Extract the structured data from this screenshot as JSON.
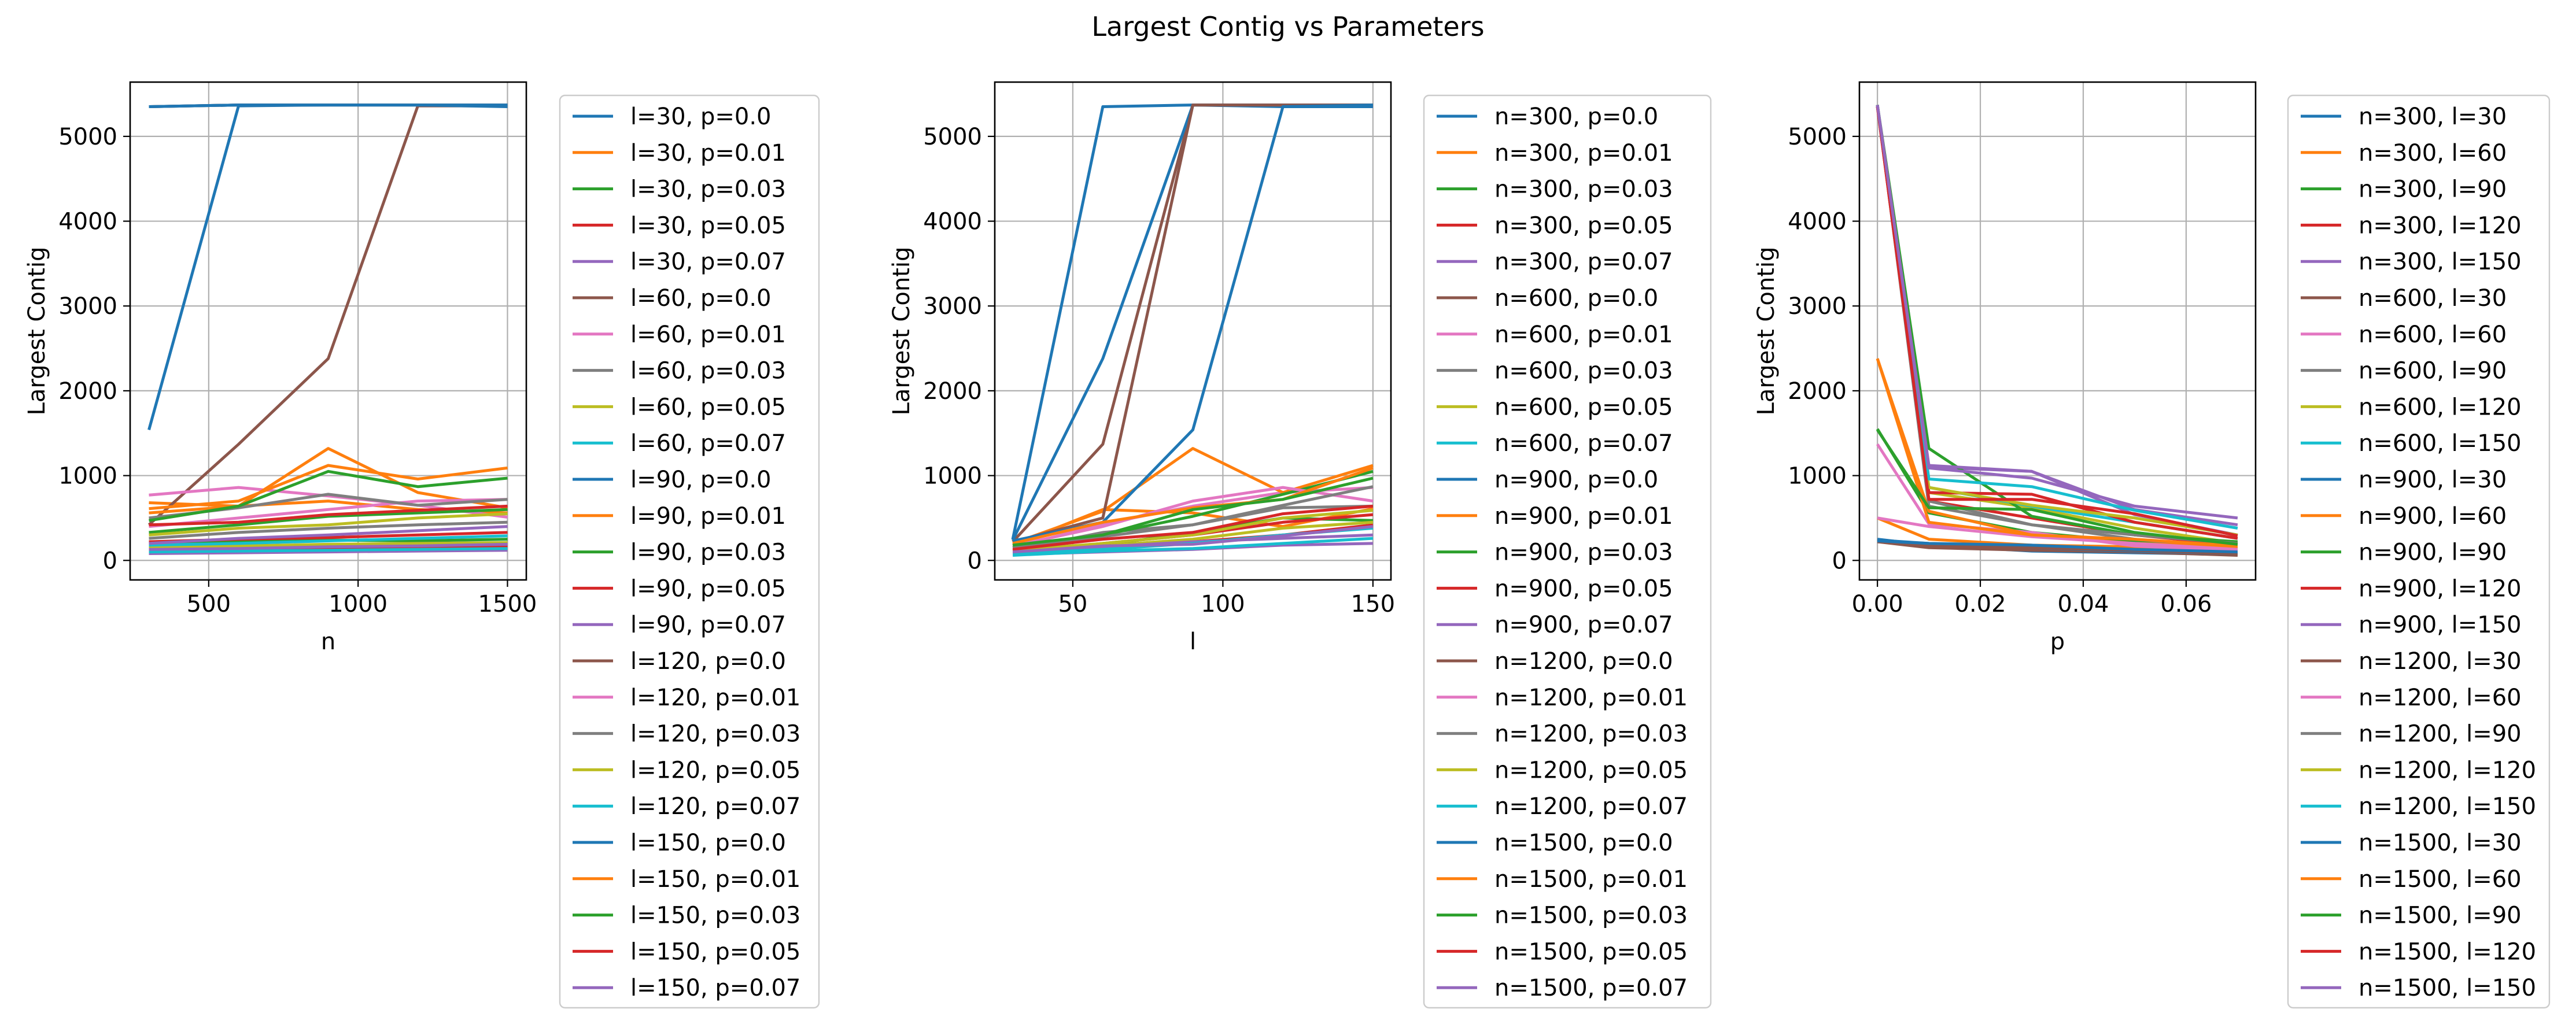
{
  "figure": {
    "suptitle": "Largest Contig vs Parameters"
  },
  "palette": [
    "#1f77b4",
    "#ff7f0e",
    "#2ca02c",
    "#d62728",
    "#9467bd",
    "#8c564b",
    "#e377c2",
    "#7f7f7f",
    "#bcbd22",
    "#17becf"
  ],
  "chart_data": [
    {
      "type": "line",
      "title": "",
      "xlabel": "n",
      "ylabel": "Largest Contig",
      "xlim": [
        237,
        1563
      ],
      "ylim": [
        -230,
        5640
      ],
      "xticks": [
        500,
        1000,
        1500
      ],
      "yticks": [
        0,
        1000,
        2000,
        3000,
        4000,
        5000
      ],
      "grid": true,
      "legend_position": "outside-right",
      "x": [
        300,
        600,
        900,
        1200,
        1500
      ],
      "series": [
        {
          "name": "l=30, p=0.0",
          "values": [
            1540,
            5360,
            5370,
            5370,
            5360
          ]
        },
        {
          "name": "l=30, p=0.01",
          "values": [
            680,
            640,
            700,
            600,
            560
          ]
        },
        {
          "name": "l=30, p=0.03",
          "values": [
            200,
            220,
            240,
            230,
            250
          ]
        },
        {
          "name": "l=30, p=0.05",
          "values": [
            120,
            130,
            140,
            150,
            160
          ]
        },
        {
          "name": "l=30, p=0.07",
          "values": [
            80,
            90,
            100,
            110,
            120
          ]
        },
        {
          "name": "l=60, p=0.0",
          "values": [
            420,
            1370,
            2380,
            5360,
            5360
          ]
        },
        {
          "name": "l=60, p=0.01",
          "values": [
            770,
            860,
            760,
            650,
            510
          ]
        },
        {
          "name": "l=60, p=0.03",
          "values": [
            260,
            330,
            380,
            420,
            450
          ]
        },
        {
          "name": "l=60, p=0.05",
          "values": [
            160,
            170,
            190,
            200,
            210
          ]
        },
        {
          "name": "l=60, p=0.07",
          "values": [
            100,
            110,
            120,
            130,
            140
          ]
        },
        {
          "name": "l=90, p=0.0",
          "values": [
            5350,
            5370,
            5370,
            5370,
            5350
          ]
        },
        {
          "name": "l=90, p=0.01",
          "values": [
            560,
            640,
            1320,
            800,
            620
          ]
        },
        {
          "name": "l=90, p=0.03",
          "values": [
            330,
            420,
            520,
            560,
            600
          ]
        },
        {
          "name": "l=90, p=0.05",
          "values": [
            220,
            250,
            270,
            300,
            330
          ]
        },
        {
          "name": "l=90, p=0.07",
          "values": [
            130,
            140,
            160,
            170,
            190
          ]
        },
        {
          "name": "l=120, p=0.0",
          "values": [
            5350,
            5370,
            5370,
            5370,
            5370
          ]
        },
        {
          "name": "l=120, p=0.01",
          "values": [
            400,
            500,
            600,
            700,
            720
          ]
        },
        {
          "name": "l=120, p=0.03",
          "values": [
            500,
            620,
            780,
            650,
            720
          ]
        },
        {
          "name": "l=120, p=0.05",
          "values": [
            300,
            380,
            420,
            500,
            550
          ]
        },
        {
          "name": "l=120, p=0.07",
          "values": [
            180,
            200,
            230,
            260,
            290
          ]
        },
        {
          "name": "l=150, p=0.0",
          "values": [
            5350,
            5370,
            5370,
            5370,
            5370
          ]
        },
        {
          "name": "l=150, p=0.01",
          "values": [
            610,
            700,
            1120,
            960,
            1090
          ]
        },
        {
          "name": "l=150, p=0.03",
          "values": [
            470,
            640,
            1050,
            870,
            970
          ]
        },
        {
          "name": "l=150, p=0.05",
          "values": [
            420,
            450,
            540,
            590,
            640
          ]
        },
        {
          "name": "l=150, p=0.07",
          "values": [
            200,
            260,
            300,
            350,
            400
          ]
        }
      ]
    },
    {
      "type": "line",
      "title": "",
      "xlabel": "l",
      "ylabel": "Largest Contig",
      "xlim": [
        24,
        156
      ],
      "ylim": [
        -230,
        5640
      ],
      "xticks": [
        50,
        100,
        150
      ],
      "yticks": [
        0,
        1000,
        2000,
        3000,
        4000,
        5000
      ],
      "grid": true,
      "legend_position": "outside-right",
      "x": [
        30,
        60,
        90,
        120,
        150
      ],
      "series": [
        {
          "name": "n=300, p=0.0",
          "values": [
            250,
            5350,
            5370,
            5350,
            5350
          ]
        },
        {
          "name": "n=300, p=0.01",
          "values": [
            180,
            600,
            560,
            400,
            610
          ]
        },
        {
          "name": "n=300, p=0.03",
          "values": [
            110,
            180,
            330,
            500,
            470
          ]
        },
        {
          "name": "n=300, p=0.05",
          "values": [
            90,
            160,
            220,
            300,
            420
          ]
        },
        {
          "name": "n=300, p=0.07",
          "values": [
            70,
            100,
            130,
            180,
            200
          ]
        },
        {
          "name": "n=600, p=0.0",
          "values": [
            220,
            1370,
            5370,
            5370,
            5370
          ]
        },
        {
          "name": "n=600, p=0.01",
          "values": [
            150,
            430,
            640,
            800,
            860
          ]
        },
        {
          "name": "n=600, p=0.03",
          "values": [
            120,
            330,
            420,
            620,
            640
          ]
        },
        {
          "name": "n=600, p=0.05",
          "values": [
            100,
            170,
            250,
            380,
            450
          ]
        },
        {
          "name": "n=600, p=0.07",
          "values": [
            60,
            110,
            140,
            200,
            260
          ]
        },
        {
          "name": "n=900, p=0.0",
          "values": [
            240,
            2380,
            5370,
            5370,
            5370
          ]
        },
        {
          "name": "n=900, p=0.01",
          "values": [
            200,
            580,
            1320,
            800,
            1120
          ]
        },
        {
          "name": "n=900, p=0.03",
          "values": [
            150,
            300,
            520,
            780,
            1050
          ]
        },
        {
          "name": "n=900, p=0.05",
          "values": [
            110,
            200,
            300,
            450,
            540
          ]
        },
        {
          "name": "n=900, p=0.07",
          "values": [
            80,
            160,
            220,
            260,
            300
          ]
        },
        {
          "name": "n=1200, p=0.0",
          "values": [
            220,
            500,
            5370,
            5370,
            5370
          ]
        },
        {
          "name": "n=1200, p=0.01",
          "values": [
            170,
            400,
            700,
            860,
            700
          ]
        },
        {
          "name": "n=1200, p=0.03",
          "values": [
            150,
            280,
            420,
            650,
            870
          ]
        },
        {
          "name": "n=1200, p=0.05",
          "values": [
            120,
            200,
            300,
            500,
            590
          ]
        },
        {
          "name": "n=1200, p=0.07",
          "values": [
            80,
            130,
            200,
            300,
            380
          ]
        },
        {
          "name": "n=1500, p=0.0",
          "values": [
            230,
            450,
            1540,
            5350,
            5370
          ]
        },
        {
          "name": "n=1500, p=0.01",
          "values": [
            200,
            450,
            620,
            720,
            1090
          ]
        },
        {
          "name": "n=1500, p=0.03",
          "values": [
            180,
            300,
            600,
            720,
            970
          ]
        },
        {
          "name": "n=1500, p=0.05",
          "values": [
            130,
            250,
            330,
            550,
            640
          ]
        },
        {
          "name": "n=1500, p=0.07",
          "values": [
            100,
            170,
            190,
            290,
            400
          ]
        }
      ]
    },
    {
      "type": "line",
      "title": "",
      "xlabel": "p",
      "ylabel": "Largest Contig",
      "xlim": [
        -0.0035,
        0.0735
      ],
      "ylim": [
        -230,
        5640
      ],
      "xticks": [
        0.0,
        0.02,
        0.04,
        0.06
      ],
      "xtick_labels": [
        "0.00",
        "0.02",
        "0.04",
        "0.06"
      ],
      "yticks": [
        0,
        1000,
        2000,
        3000,
        4000,
        5000
      ],
      "grid": true,
      "legend_position": "outside-right",
      "x": [
        0.0,
        0.01,
        0.03,
        0.05,
        0.07
      ],
      "series": [
        {
          "name": "n=300, l=30",
          "values": [
            250,
            180,
            110,
            90,
            70
          ]
        },
        {
          "name": "n=300, l=60",
          "values": [
            500,
            250,
            180,
            160,
            140
          ]
        },
        {
          "name": "n=300, l=90",
          "values": [
            1550,
            560,
            330,
            220,
            130
          ]
        },
        {
          "name": "n=300, l=120",
          "values": [
            5350,
            700,
            500,
            300,
            180
          ]
        },
        {
          "name": "n=300, l=150",
          "values": [
            5350,
            1100,
            1050,
            600,
            420
          ]
        },
        {
          "name": "n=600, l=30",
          "values": [
            220,
            150,
            120,
            100,
            60
          ]
        },
        {
          "name": "n=600, l=60",
          "values": [
            1370,
            430,
            330,
            170,
            110
          ]
        },
        {
          "name": "n=600, l=90",
          "values": [
            5370,
            640,
            420,
            250,
            140
          ]
        },
        {
          "name": "n=600, l=120",
          "values": [
            5370,
            800,
            620,
            380,
            200
          ]
        },
        {
          "name": "n=600, l=150",
          "values": [
            5370,
            860,
            640,
            450,
            260
          ]
        },
        {
          "name": "n=900, l=30",
          "values": [
            240,
            200,
            150,
            110,
            80
          ]
        },
        {
          "name": "n=900, l=60",
          "values": [
            2380,
            580,
            300,
            200,
            160
          ]
        },
        {
          "name": "n=900, l=90",
          "values": [
            5370,
            1320,
            520,
            300,
            220
          ]
        },
        {
          "name": "n=900, l=120",
          "values": [
            5370,
            800,
            780,
            450,
            260
          ]
        },
        {
          "name": "n=900, l=150",
          "values": [
            5370,
            1120,
            1050,
            540,
            300
          ]
        },
        {
          "name": "n=1200, l=30",
          "values": [
            220,
            170,
            150,
            120,
            80
          ]
        },
        {
          "name": "n=1200, l=60",
          "values": [
            500,
            400,
            280,
            200,
            130
          ]
        },
        {
          "name": "n=1200, l=90",
          "values": [
            5370,
            700,
            420,
            300,
            200
          ]
        },
        {
          "name": "n=1200, l=120",
          "values": [
            5370,
            860,
            650,
            500,
            300
          ]
        },
        {
          "name": "n=1200, l=150",
          "values": [
            5370,
            960,
            870,
            590,
            380
          ]
        },
        {
          "name": "n=1500, l=30",
          "values": [
            230,
            200,
            180,
            130,
            100
          ]
        },
        {
          "name": "n=1500, l=60",
          "values": [
            2380,
            450,
            300,
            250,
            170
          ]
        },
        {
          "name": "n=1500, l=90",
          "values": [
            1540,
            620,
            600,
            330,
            190
          ]
        },
        {
          "name": "n=1500, l=120",
          "values": [
            5350,
            720,
            720,
            550,
            290
          ]
        },
        {
          "name": "n=1500, l=150",
          "values": [
            5370,
            1090,
            970,
            640,
            500
          ]
        }
      ]
    }
  ]
}
